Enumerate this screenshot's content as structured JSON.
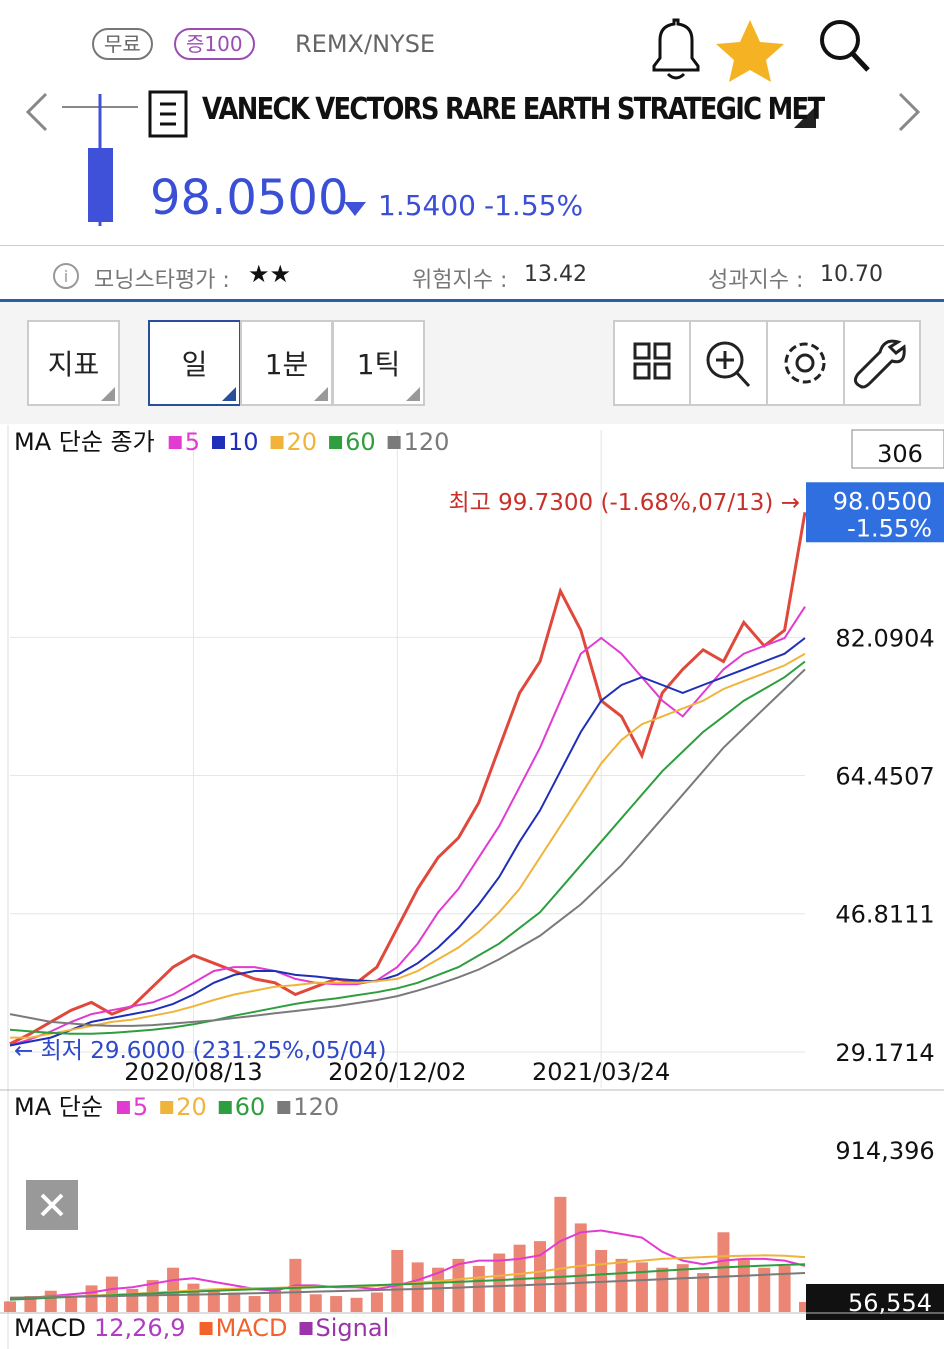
{
  "header": {
    "badges": [
      "무료",
      "증100"
    ],
    "ticker": "REMX/NYSE",
    "name": "VANECK VECTORS RARE EARTH STRATEGIC MET",
    "price": "98.0500",
    "change": "1.5400",
    "change_pct": "-1.55%"
  },
  "ratings": {
    "morningstar_label": "모닝스타평가 :",
    "stars": "★★",
    "risk_label": "위험지수 :",
    "risk": "13.42",
    "perf_label": "성과지수 :",
    "perf": "10.70"
  },
  "toolbar": [
    "지표",
    "일",
    "1분",
    "1틱"
  ],
  "chart_data": [
    {
      "type": "line",
      "title": "MA 단순 종가",
      "color": "#e0483c",
      "grid": true,
      "categories": [
        null,
        null,
        null,
        null,
        null,
        null,
        null,
        null,
        null,
        "2020/08/13",
        null,
        null,
        null,
        null,
        null,
        null,
        null,
        null,
        null,
        "2020/12/02",
        null,
        null,
        null,
        null,
        null,
        null,
        null,
        null,
        null,
        "2021/03/24",
        null,
        null,
        null,
        null,
        null,
        null,
        null,
        null,
        null,
        null
      ],
      "values": [
        30.2,
        31.5,
        33.0,
        34.5,
        35.5,
        34.0,
        35.0,
        37.5,
        40.0,
        41.5,
        40.5,
        39.5,
        38.5,
        38.0,
        36.5,
        37.5,
        38.5,
        38.0,
        40.0,
        45.0,
        50.0,
        54.0,
        56.5,
        61.0,
        68.0,
        75.0,
        79.0,
        88.0,
        83.0,
        74.0,
        72.0,
        67.0,
        75.0,
        78.0,
        80.5,
        79.0,
        84.0,
        81.0,
        83.0,
        98.05
      ],
      "series": [
        {
          "name": "5",
          "color": "#e23bd1",
          "values": [
            30,
            30.8,
            31.8,
            33,
            34,
            34.5,
            35,
            35.5,
            36.5,
            38,
            39.5,
            40,
            40,
            39.5,
            38.5,
            38,
            37.8,
            37.8,
            38.3,
            40,
            43,
            47,
            50,
            54,
            58,
            63,
            68,
            74,
            80,
            82,
            80,
            77,
            74,
            72,
            75,
            78,
            80,
            81,
            82,
            86
          ]
        },
        {
          "name": "10",
          "color": "#1f2fb8",
          "values": [
            30,
            30.5,
            31,
            32,
            33,
            33.5,
            34,
            34.5,
            35.3,
            36.5,
            38,
            39,
            39.5,
            39.5,
            39,
            38.8,
            38.5,
            38.3,
            38.2,
            39,
            40.5,
            42.5,
            45,
            48,
            51.5,
            56,
            60,
            65,
            70,
            74,
            76,
            77,
            76,
            75,
            76,
            77,
            78,
            79,
            80,
            82
          ]
        },
        {
          "name": "20",
          "color": "#f0b43c",
          "values": [
            31,
            31,
            31.5,
            32,
            32.5,
            33,
            33.3,
            33.8,
            34.3,
            35,
            35.8,
            36.5,
            37,
            37.5,
            37.7,
            38,
            38,
            38,
            38.2,
            38.5,
            39.5,
            41,
            42.5,
            44.5,
            47,
            50,
            54,
            58,
            62,
            66,
            69,
            71,
            72,
            73,
            74,
            75.5,
            76.5,
            77.5,
            78.5,
            80
          ]
        },
        {
          "name": "60",
          "color": "#2e9e3e",
          "values": [
            32,
            31.8,
            31.6,
            31.5,
            31.5,
            31.6,
            31.8,
            32,
            32.3,
            32.7,
            33.2,
            33.8,
            34.3,
            34.8,
            35.3,
            35.7,
            36,
            36.4,
            36.8,
            37.3,
            38,
            39,
            40,
            41.5,
            43,
            45,
            47,
            50,
            53,
            56,
            59,
            62,
            65,
            67.5,
            70,
            72,
            74,
            75.5,
            77,
            79
          ]
        },
        {
          "name": "120",
          "color": "#7a7a7a",
          "values": [
            34,
            33.5,
            33,
            32.8,
            32.6,
            32.5,
            32.5,
            32.6,
            32.8,
            33,
            33.2,
            33.5,
            33.8,
            34.1,
            34.4,
            34.7,
            35,
            35.4,
            35.8,
            36.3,
            37,
            37.8,
            38.7,
            39.7,
            41,
            42.5,
            44,
            46,
            48,
            50.5,
            53,
            56,
            59,
            62,
            65,
            68,
            70.5,
            73,
            75.5,
            78
          ]
        }
      ],
      "ylim": [
        24.57,
        108.55
      ],
      "yticks": [
        29.1714,
        46.8111,
        64.4507,
        82.0904
      ],
      "annotations": {
        "high": "최고 99.7300 (-1.68%,07/13) →",
        "low": "← 최저 29.6000 (231.25%,05/04)",
        "last_price": "98.0500",
        "last_change": "-1.55%",
        "count": "306"
      }
    },
    {
      "type": "bar",
      "title": "MA 단순",
      "color": "#e8705c",
      "values": [
        60000,
        90000,
        120000,
        80000,
        150000,
        200000,
        130000,
        180000,
        250000,
        160000,
        120000,
        110000,
        90000,
        140000,
        300000,
        100000,
        90000,
        80000,
        110000,
        350000,
        280000,
        250000,
        300000,
        260000,
        330000,
        380000,
        400000,
        650000,
        500000,
        350000,
        300000,
        280000,
        250000,
        270000,
        220000,
        450000,
        300000,
        250000,
        260000,
        56554
      ],
      "value_labels": {
        "39": "56,554"
      },
      "series": [
        {
          "name": "5",
          "color": "#e23bd1",
          "values": [
            70000,
            80000,
            90000,
            100000,
            110000,
            130000,
            140000,
            160000,
            180000,
            190000,
            170000,
            150000,
            130000,
            120000,
            150000,
            150000,
            140000,
            140000,
            130000,
            150000,
            180000,
            220000,
            270000,
            290000,
            290000,
            300000,
            320000,
            400000,
            450000,
            460000,
            440000,
            420000,
            340000,
            290000,
            270000,
            290000,
            300000,
            300000,
            290000,
            260000
          ]
        },
        {
          "name": "20",
          "color": "#f0b43c",
          "values": [
            80000,
            82000,
            85000,
            88000,
            92000,
            97000,
            102000,
            108000,
            115000,
            122000,
            128000,
            132000,
            134000,
            136000,
            140000,
            142000,
            144000,
            146000,
            148000,
            155000,
            165000,
            175000,
            185000,
            195000,
            205000,
            215000,
            228000,
            245000,
            260000,
            270000,
            280000,
            290000,
            300000,
            305000,
            310000,
            315000,
            318000,
            320000,
            318000,
            310000
          ]
        },
        {
          "name": "60",
          "color": "#2e9e3e",
          "values": [
            70000,
            75000,
            80000,
            85000,
            90000,
            95000,
            100000,
            105000,
            110000,
            115000,
            120000,
            124000,
            128000,
            132000,
            136000,
            140000,
            144000,
            148000,
            152000,
            156000,
            160000,
            165000,
            170000,
            175000,
            180000,
            186000,
            192000,
            198000,
            205000,
            212000,
            219000,
            226000,
            233000,
            240000,
            246000,
            252000,
            257000,
            262000,
            266000,
            270000
          ]
        },
        {
          "name": "120",
          "color": "#7a7a7a",
          "values": [
            80000,
            82000,
            84000,
            86000,
            88000,
            90000,
            92000,
            94000,
            96000,
            98000,
            100000,
            103000,
            106000,
            109000,
            112000,
            115000,
            118000,
            121000,
            124000,
            127000,
            130000,
            134000,
            138000,
            142000,
            146000,
            150000,
            155000,
            160000,
            165000,
            170000,
            175000,
            180000,
            185000,
            190000,
            195000,
            200000,
            205000,
            210000,
            215000,
            220000
          ]
        }
      ],
      "ylim": [
        0,
        1224877
      ],
      "yticks": [
        {
          "value": 914396,
          "label": "914,396"
        }
      ]
    },
    {
      "type": "macd",
      "title": "MACD",
      "params": "12,26,9",
      "series": [
        {
          "name": "MACD",
          "color": "#f4622b"
        },
        {
          "name": "Signal",
          "color": "#9b34a8"
        }
      ]
    }
  ]
}
